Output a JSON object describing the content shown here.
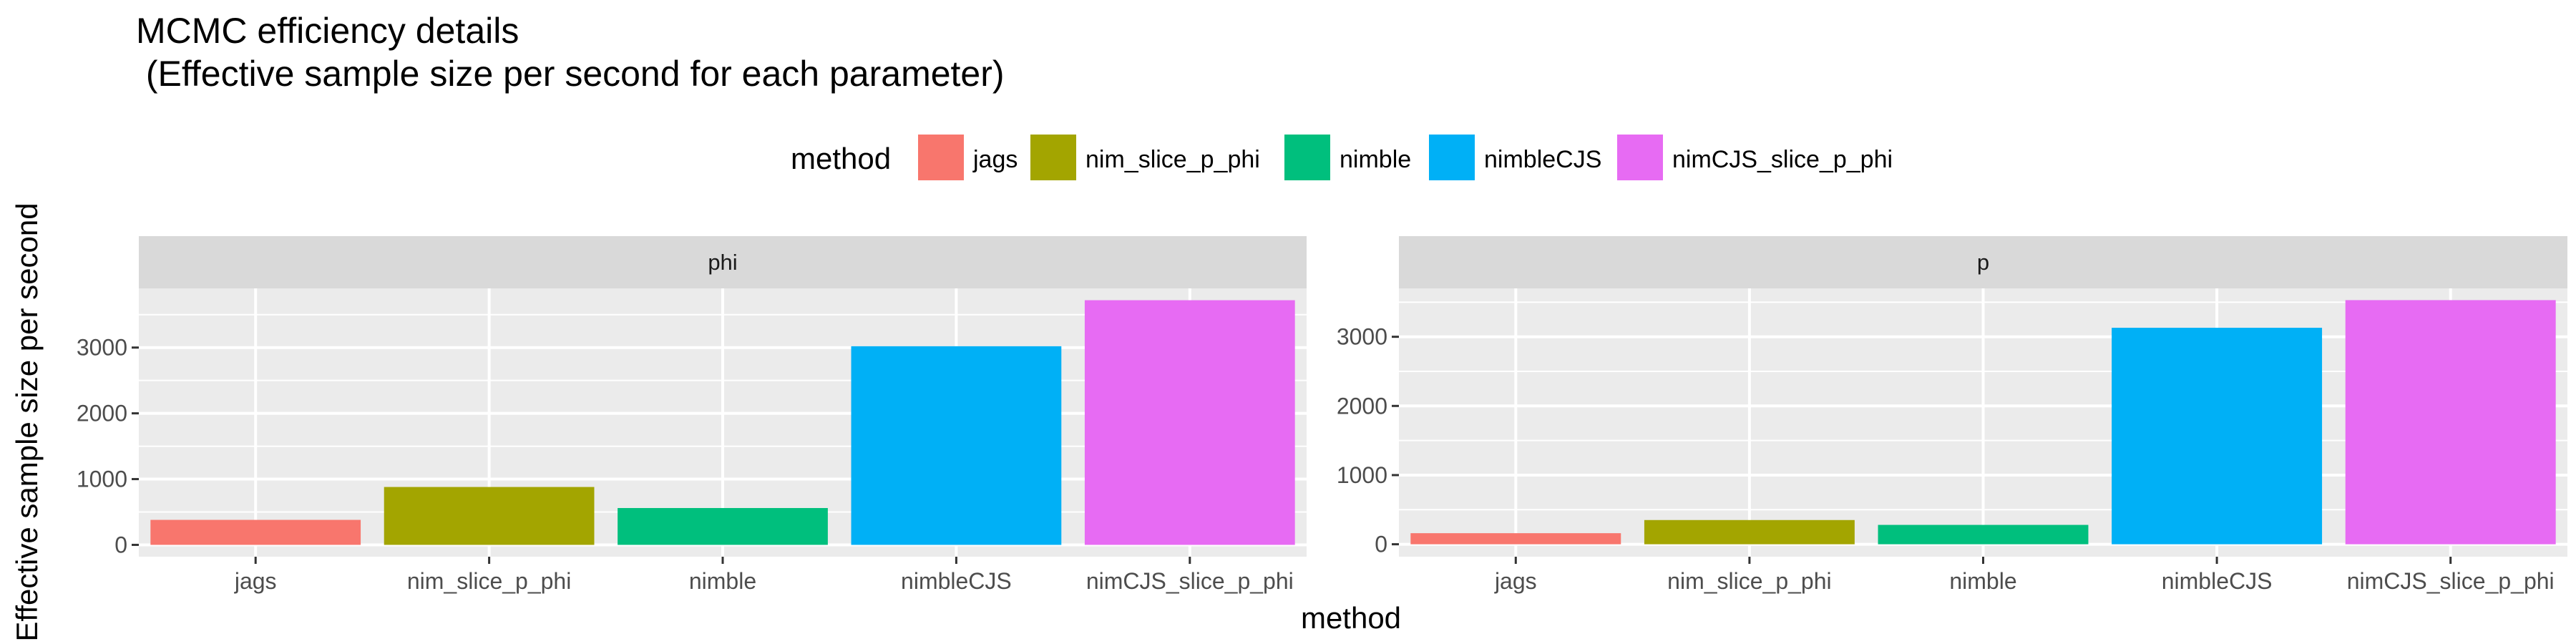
{
  "chart_data": {
    "type": "bar",
    "title_lines": [
      "MCMC efficiency details",
      " (Effective sample size per second for each parameter)"
    ],
    "xlabel": "method",
    "ylabel": "Effective sample size per second",
    "legend": {
      "title": "method",
      "position": "top",
      "entries": [
        {
          "label": "jags",
          "color": "#F8766D"
        },
        {
          "label": "nim_slice_p_phi",
          "color": "#A3A500"
        },
        {
          "label": "nimble",
          "color": "#00BF7D"
        },
        {
          "label": "nimbleCJS",
          "color": "#00B0F6"
        },
        {
          "label": "nimCJS_slice_p_phi",
          "color": "#E76BF3"
        }
      ]
    },
    "categories": [
      "jags",
      "nim_slice_p_phi",
      "nimble",
      "nimbleCJS",
      "nimCJS_slice_p_phi"
    ],
    "panels": [
      {
        "name": "phi",
        "values": [
          380,
          880,
          560,
          3020,
          3720
        ],
        "ylim": [
          -180,
          3900
        ],
        "yticks": [
          0,
          1000,
          2000,
          3000
        ]
      },
      {
        "name": "p",
        "values": [
          160,
          350,
          280,
          3130,
          3530
        ],
        "ylim": [
          -180,
          3700
        ],
        "yticks": [
          0,
          1000,
          2000,
          3000
        ]
      }
    ],
    "grid": true,
    "panel_background": "#EBEBEB",
    "strip_background": "#D9D9D9"
  }
}
